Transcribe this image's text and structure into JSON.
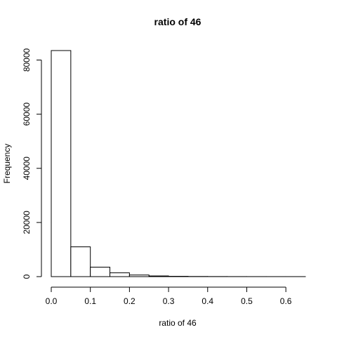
{
  "chart_data": {
    "type": "bar",
    "title": "ratio of 46",
    "xlabel": "ratio of 46",
    "ylabel": "Frequency",
    "bins": [
      {
        "x0": 0.0,
        "x1": 0.05,
        "count": 83500
      },
      {
        "x0": 0.05,
        "x1": 0.1,
        "count": 11000
      },
      {
        "x0": 0.1,
        "x1": 0.15,
        "count": 3500
      },
      {
        "x0": 0.15,
        "x1": 0.2,
        "count": 1400
      },
      {
        "x0": 0.2,
        "x1": 0.25,
        "count": 600
      },
      {
        "x0": 0.25,
        "x1": 0.3,
        "count": 250
      },
      {
        "x0": 0.3,
        "x1": 0.35,
        "count": 120
      },
      {
        "x0": 0.35,
        "x1": 0.4,
        "count": 60
      },
      {
        "x0": 0.4,
        "x1": 0.45,
        "count": 35
      },
      {
        "x0": 0.45,
        "x1": 0.5,
        "count": 20
      },
      {
        "x0": 0.5,
        "x1": 0.55,
        "count": 12
      },
      {
        "x0": 0.55,
        "x1": 0.6,
        "count": 8
      },
      {
        "x0": 0.6,
        "x1": 0.65,
        "count": 5
      }
    ],
    "xlim": [
      0,
      0.65
    ],
    "ylim": [
      0,
      83500
    ],
    "xticks": [
      0.0,
      0.1,
      0.2,
      0.3,
      0.4,
      0.5,
      0.6
    ],
    "xtick_labels": [
      "0.0",
      "0.1",
      "0.2",
      "0.3",
      "0.4",
      "0.5",
      "0.6"
    ],
    "yticks": [
      0,
      20000,
      40000,
      60000,
      80000
    ],
    "ytick_labels": [
      "0",
      "20000",
      "40000",
      "60000",
      "80000"
    ],
    "grid": false,
    "bar_fill": "#ffffff",
    "bar_stroke": "#000000"
  }
}
